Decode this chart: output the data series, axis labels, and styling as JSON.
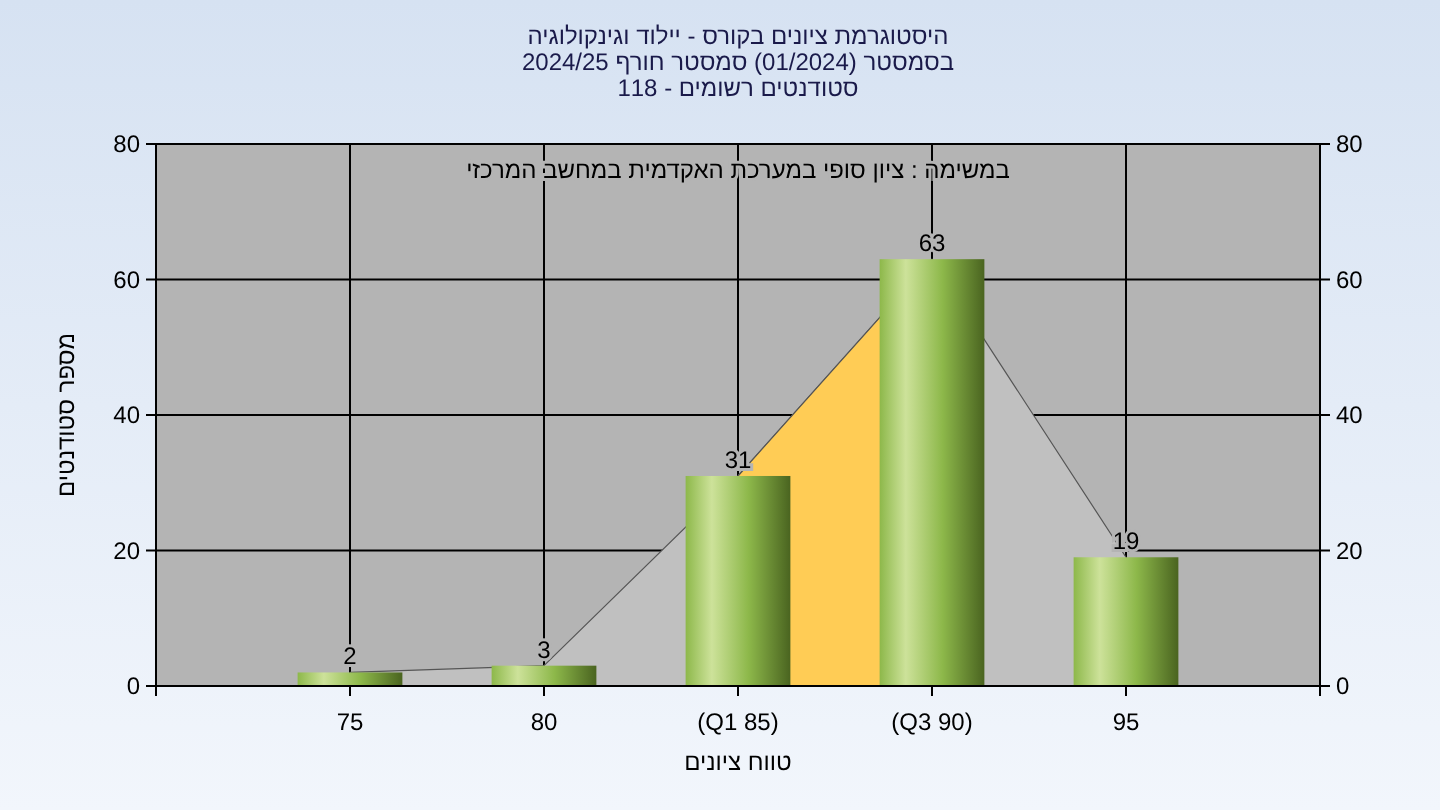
{
  "chart_data": {
    "type": "bar",
    "title": "היסטוגרמת ציונים בקורס - יילוד וגינקולוגיה",
    "subtitle": "בסמסטר  (01/2024)  סמסטר חורף 2024/25\nסטודנטים רשומים - 118",
    "xlabel": "טווח ציונים",
    "ylabel": "מספר סטודנטים",
    "annotations": [
      "במשימה : ציון סופי במערכת האקדמית במחשב המרכזי"
    ],
    "categories": [
      "75",
      "80",
      "(Q1 85)",
      "(Q3 90)",
      "95"
    ],
    "series": [
      {
        "type": "area",
        "color": "#c0c0c0",
        "values": [
          2,
          3,
          31,
          63,
          19
        ]
      },
      {
        "type": "area",
        "color": "#ffcc55",
        "values": [
          null,
          null,
          31,
          63,
          null
        ]
      },
      {
        "color": "#8db84a",
        "values": [
          2,
          3,
          31,
          63,
          19
        ],
        "value_labels": [
          "2",
          "3",
          "31",
          "63",
          "19"
        ]
      }
    ],
    "ylim": [
      0,
      80
    ],
    "yticks": [
      0,
      20,
      40,
      60,
      80
    ],
    "y2lim": [
      0,
      80
    ],
    "y2ticks": [
      0,
      20,
      40,
      60,
      80
    ],
    "grid": true
  }
}
